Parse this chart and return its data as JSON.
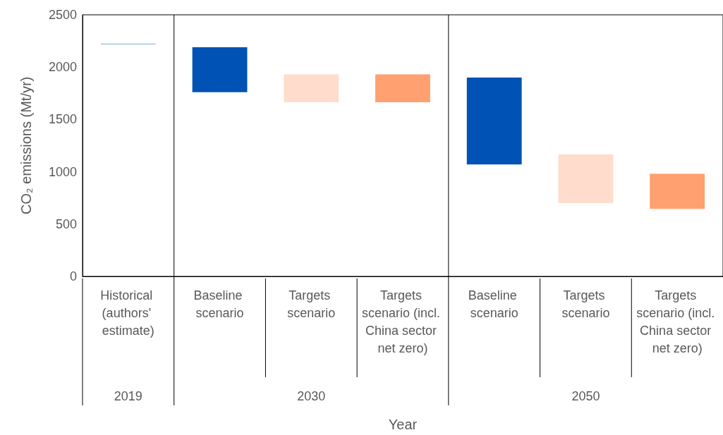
{
  "chart_data": {
    "type": "bar",
    "ylabel": "CO₂ emissions (Mt/yr)",
    "xlabel": "Year",
    "categories": [
      "Historical (authors' estimate)",
      "Baseline scenario",
      "Targets scenario",
      "Targets scenario (incl. China sector net zero)",
      "Baseline scenario",
      "Targets scenario",
      "Targets scenario (incl. China sector net zero)"
    ],
    "base": [
      2215,
      1760,
      1665,
      1665,
      1070,
      700,
      645
    ],
    "values": [
      10,
      430,
      265,
      265,
      830,
      465,
      335
    ],
    "colors": [
      "#9dc3e6",
      "#0052b4",
      "#ffdccb",
      "#ffa070",
      "#0052b4",
      "#ffdccb",
      "#ffa070"
    ],
    "ylim": [
      0,
      2500
    ],
    "yticks": [
      0,
      500,
      1000,
      1500,
      2000,
      2500
    ],
    "annotations": [
      "2019",
      "2030",
      "2050"
    ]
  }
}
